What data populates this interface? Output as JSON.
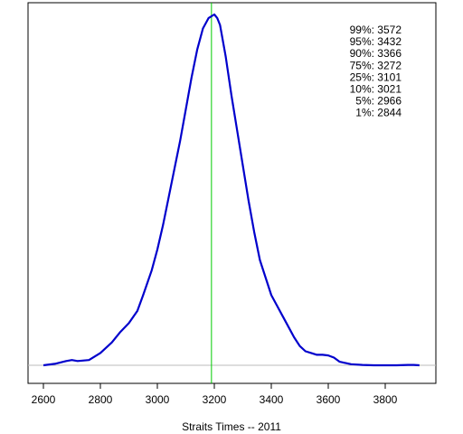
{
  "chart_data": {
    "type": "line",
    "xlabel": "Straits Times -- 2011",
    "ylabel": "",
    "title": "",
    "xlim": [
      2575,
      3975
    ],
    "ylim": [
      -0.03,
      1.0
    ],
    "x_ticks": [
      2600,
      2800,
      3000,
      3200,
      3400,
      3600,
      3800
    ],
    "y_axis_shown": false,
    "grid": false,
    "colors": {
      "density": "#0000cc",
      "observed": "#00cc00",
      "baseline": "#bbbbbb"
    },
    "observed_value": 3190,
    "series": [
      {
        "x": [
          2600,
          2640,
          2680,
          2700,
          2720,
          2760,
          2800,
          2840,
          2870,
          2900,
          2930,
          2950,
          2980,
          3000,
          3020,
          3040,
          3060,
          3080,
          3100,
          3120,
          3140,
          3160,
          3180,
          3200,
          3210,
          3220,
          3240,
          3260,
          3280,
          3300,
          3320,
          3340,
          3360,
          3380,
          3400,
          3420,
          3440,
          3460,
          3480,
          3500,
          3520,
          3540,
          3560,
          3580,
          3600,
          3620,
          3640,
          3680,
          3720,
          3760,
          3800,
          3840,
          3880,
          3900,
          3920
        ],
        "values": [
          0.0,
          0.004,
          0.012,
          0.015,
          0.012,
          0.015,
          0.035,
          0.065,
          0.095,
          0.12,
          0.155,
          0.2,
          0.27,
          0.33,
          0.4,
          0.48,
          0.56,
          0.64,
          0.73,
          0.82,
          0.9,
          0.96,
          0.99,
          1.0,
          0.99,
          0.97,
          0.88,
          0.77,
          0.67,
          0.57,
          0.47,
          0.38,
          0.3,
          0.25,
          0.2,
          0.17,
          0.14,
          0.11,
          0.08,
          0.055,
          0.04,
          0.035,
          0.03,
          0.03,
          0.028,
          0.022,
          0.01,
          0.003,
          0.001,
          0.0,
          0.0,
          0.0,
          0.001,
          0.001,
          0.0
        ]
      }
    ],
    "quantiles": [
      {
        "label": "99%: 3572"
      },
      {
        "label": "95%: 3432"
      },
      {
        "label": "90%: 3366"
      },
      {
        "label": "75%: 3272"
      },
      {
        "label": "25%: 3101"
      },
      {
        "label": "10%: 3021"
      },
      {
        "label": "5%: 2966"
      },
      {
        "label": "1%: 2844"
      }
    ]
  }
}
